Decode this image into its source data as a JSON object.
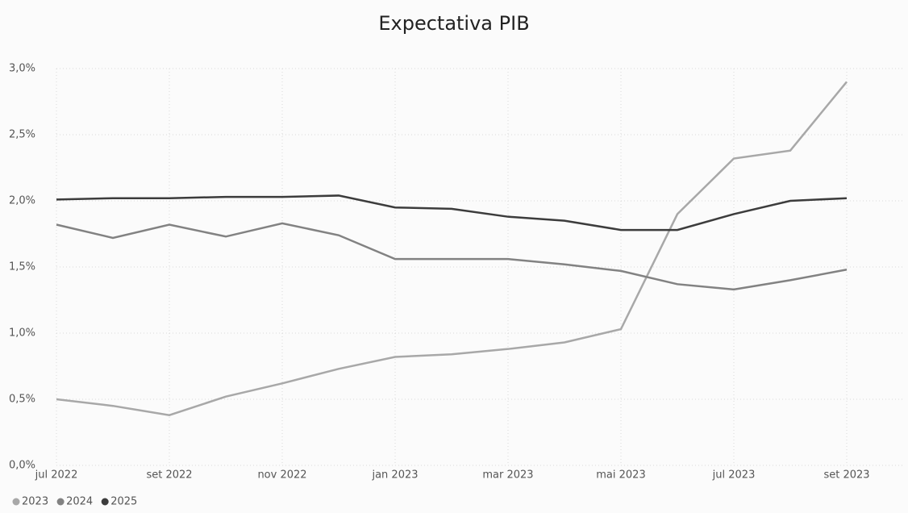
{
  "chart_data": {
    "type": "line",
    "title": "Expectativa PIB",
    "x": [
      "2022-07",
      "2022-08",
      "2022-09",
      "2022-10",
      "2022-11",
      "2022-12",
      "2023-01",
      "2023-02",
      "2023-03",
      "2023-04",
      "2023-05",
      "2023-06",
      "2023-07",
      "2023-08",
      "2023-09"
    ],
    "series": [
      {
        "name": "2023",
        "color": "#a8a8a8",
        "values": [
          0.5,
          0.45,
          0.38,
          0.52,
          0.62,
          0.73,
          0.82,
          0.84,
          0.88,
          0.93,
          1.03,
          1.9,
          2.32,
          2.38,
          2.9
        ]
      },
      {
        "name": "2024",
        "color": "#828282",
        "values": [
          1.82,
          1.72,
          1.82,
          1.73,
          1.83,
          1.74,
          1.56,
          1.56,
          1.56,
          1.52,
          1.47,
          1.37,
          1.33,
          1.4,
          1.48
        ]
      },
      {
        "name": "2025",
        "color": "#3c3c3c",
        "values": [
          2.01,
          2.02,
          2.02,
          2.03,
          2.03,
          2.04,
          1.95,
          1.94,
          1.88,
          1.85,
          1.78,
          1.78,
          1.9,
          2.0,
          2.02
        ]
      }
    ],
    "xlim": [
      "2022-07",
      "2023-10"
    ],
    "xticks": [
      {
        "value": "2022-07",
        "label": "jul 2022"
      },
      {
        "value": "2022-09",
        "label": "set 2022"
      },
      {
        "value": "2022-11",
        "label": "nov 2022"
      },
      {
        "value": "2023-01",
        "label": "jan 2023"
      },
      {
        "value": "2023-03",
        "label": "mar 2023"
      },
      {
        "value": "2023-05",
        "label": "mai 2023"
      },
      {
        "value": "2023-07",
        "label": "jul 2023"
      },
      {
        "value": "2023-09",
        "label": "set 2023"
      }
    ],
    "ylim": [
      0,
      3
    ],
    "yticks": [
      {
        "value": 0,
        "label": "0,0%"
      },
      {
        "value": 0.5,
        "label": "0,5%"
      },
      {
        "value": 1,
        "label": "1,0%"
      },
      {
        "value": 1.5,
        "label": "1,5%"
      },
      {
        "value": 2,
        "label": "2,0%"
      },
      {
        "value": 2.5,
        "label": "2,5%"
      },
      {
        "value": 3,
        "label": "3,0%"
      }
    ],
    "grid": true,
    "legend": "bottom-left"
  }
}
